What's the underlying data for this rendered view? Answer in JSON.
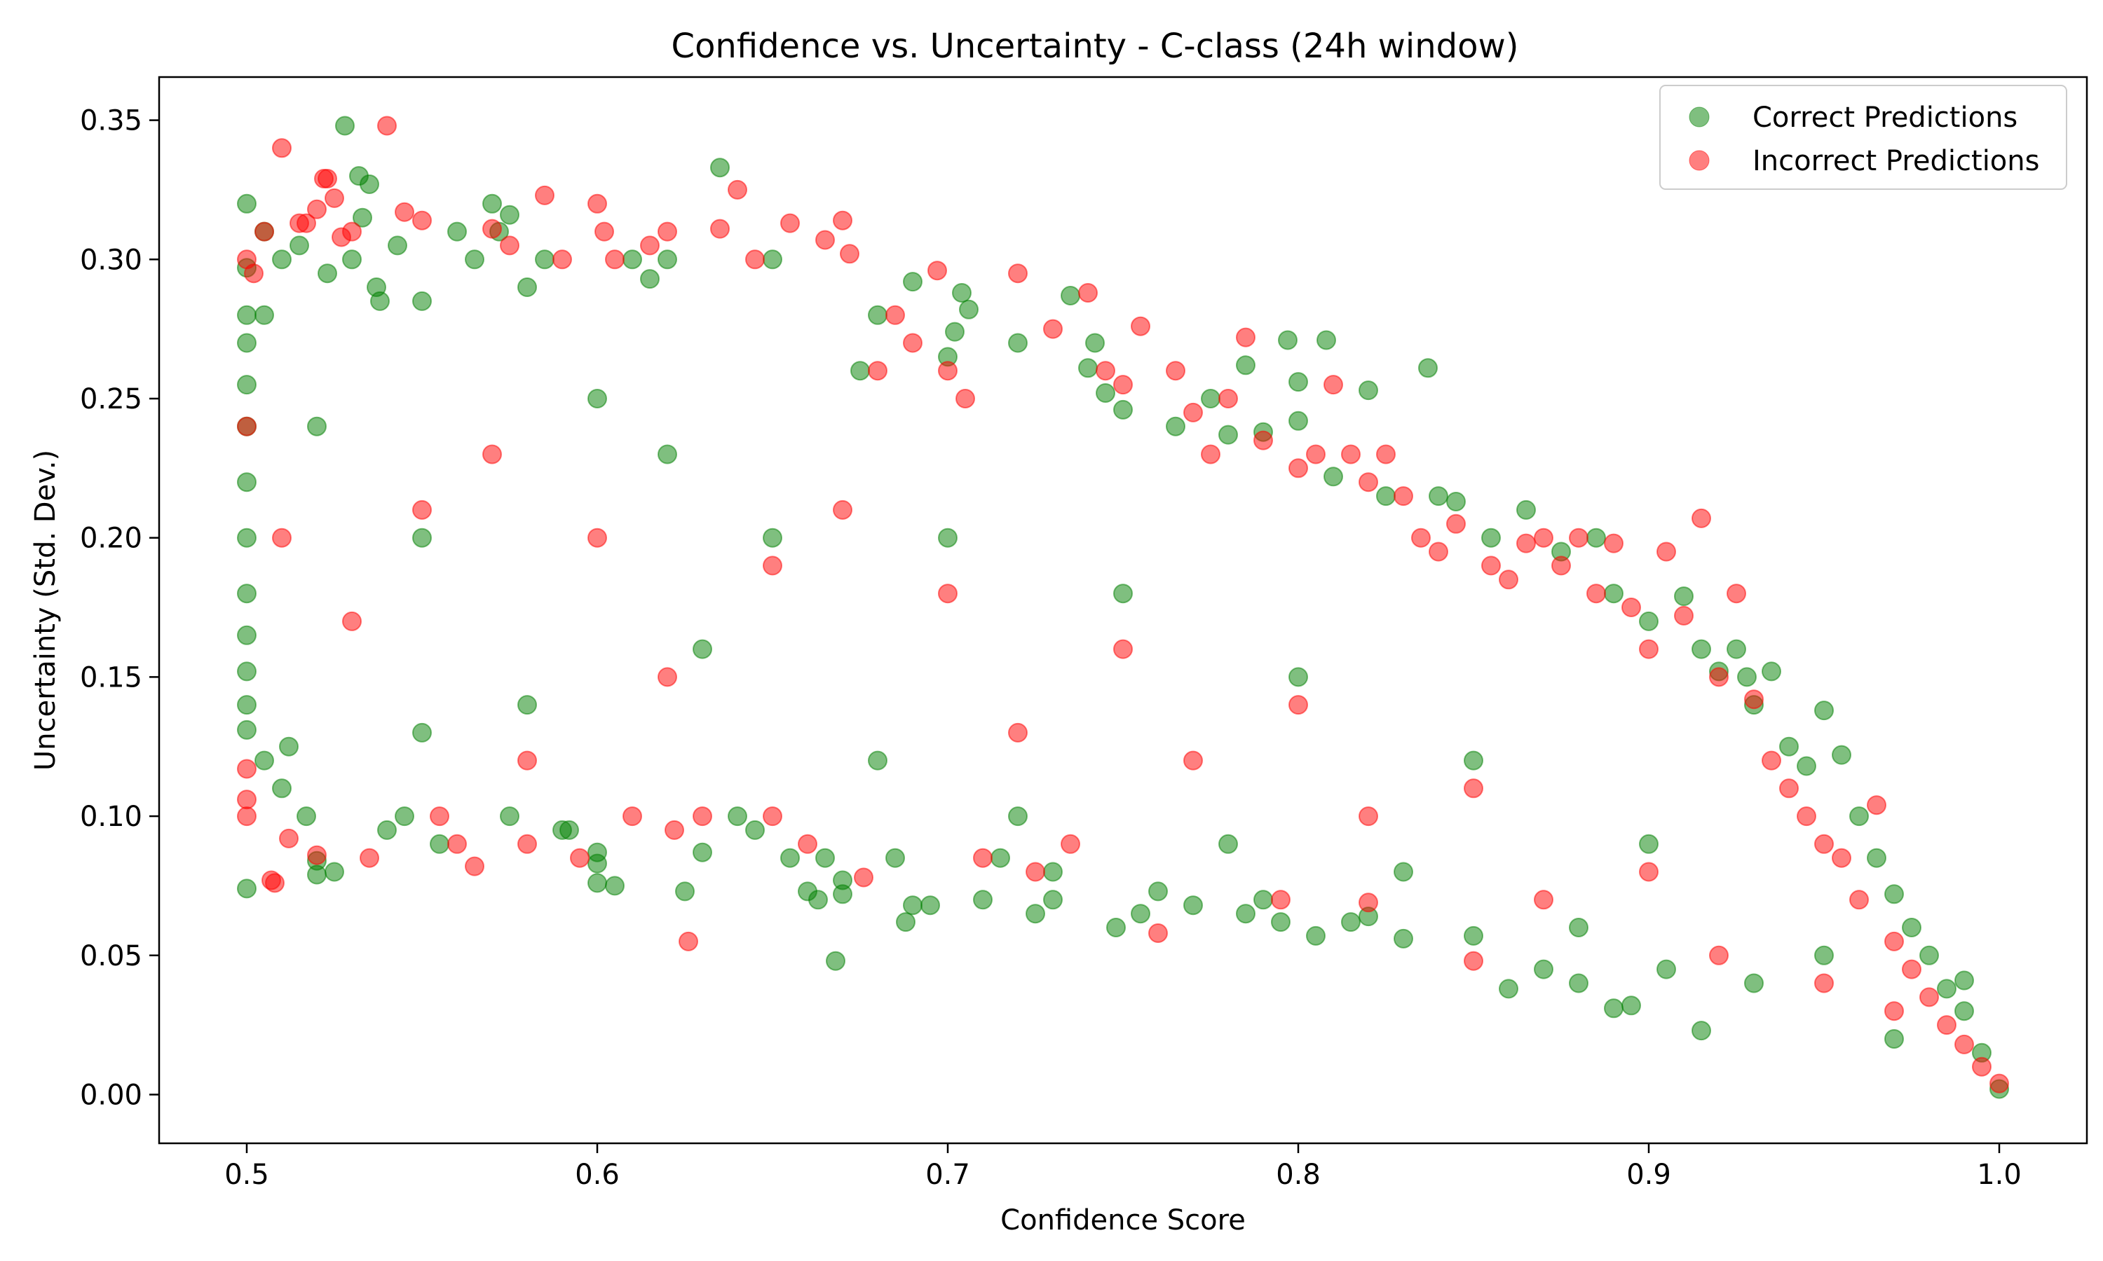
{
  "chart_data": {
    "type": "scatter",
    "title": "Confidence vs. Uncertainty - C-class (24h window)",
    "xlabel": "Confidence Score",
    "ylabel": "Uncertainty (Std. Dev.)",
    "xlim": [
      0.475,
      1.025
    ],
    "ylim": [
      -0.0175,
      0.3655
    ],
    "x_ticks": [
      0.5,
      0.6,
      0.7,
      0.8,
      0.9,
      1.0
    ],
    "x_tick_labels": [
      "0.5",
      "0.6",
      "0.7",
      "0.8",
      "0.9",
      "1.0"
    ],
    "y_ticks": [
      0.0,
      0.05,
      0.1,
      0.15,
      0.2,
      0.25,
      0.3,
      0.35
    ],
    "y_tick_labels": [
      "0.00",
      "0.05",
      "0.10",
      "0.15",
      "0.20",
      "0.25",
      "0.30",
      "0.35"
    ],
    "grid": false,
    "legend_position": "top-right",
    "series": [
      {
        "name": "Correct Predictions",
        "color": "#008000",
        "opacity": 0.5,
        "points": [
          [
            0.5,
            0.32
          ],
          [
            0.5,
            0.297
          ],
          [
            0.5,
            0.28
          ],
          [
            0.5,
            0.27
          ],
          [
            0.5,
            0.255
          ],
          [
            0.5,
            0.24
          ],
          [
            0.5,
            0.22
          ],
          [
            0.5,
            0.2
          ],
          [
            0.5,
            0.18
          ],
          [
            0.5,
            0.165
          ],
          [
            0.5,
            0.152
          ],
          [
            0.5,
            0.14
          ],
          [
            0.5,
            0.131
          ],
          [
            0.5,
            0.074
          ],
          [
            0.505,
            0.31
          ],
          [
            0.505,
            0.28
          ],
          [
            0.505,
            0.12
          ],
          [
            0.51,
            0.3
          ],
          [
            0.51,
            0.11
          ],
          [
            0.512,
            0.125
          ],
          [
            0.515,
            0.305
          ],
          [
            0.517,
            0.1
          ],
          [
            0.52,
            0.079
          ],
          [
            0.52,
            0.084
          ],
          [
            0.523,
            0.295
          ],
          [
            0.525,
            0.08
          ],
          [
            0.528,
            0.348
          ],
          [
            0.53,
            0.3
          ],
          [
            0.532,
            0.33
          ],
          [
            0.533,
            0.315
          ],
          [
            0.535,
            0.327
          ],
          [
            0.537,
            0.29
          ],
          [
            0.538,
            0.285
          ],
          [
            0.54,
            0.095
          ],
          [
            0.543,
            0.305
          ],
          [
            0.545,
            0.1
          ],
          [
            0.55,
            0.285
          ],
          [
            0.55,
            0.13
          ],
          [
            0.555,
            0.09
          ],
          [
            0.56,
            0.31
          ],
          [
            0.565,
            0.3
          ],
          [
            0.57,
            0.32
          ],
          [
            0.572,
            0.31
          ],
          [
            0.575,
            0.316
          ],
          [
            0.575,
            0.1
          ],
          [
            0.58,
            0.29
          ],
          [
            0.585,
            0.3
          ],
          [
            0.59,
            0.095
          ],
          [
            0.592,
            0.095
          ],
          [
            0.6,
            0.076
          ],
          [
            0.6,
            0.087
          ],
          [
            0.6,
            0.083
          ],
          [
            0.605,
            0.075
          ],
          [
            0.61,
            0.3
          ],
          [
            0.615,
            0.293
          ],
          [
            0.62,
            0.3
          ],
          [
            0.625,
            0.073
          ],
          [
            0.63,
            0.087
          ],
          [
            0.635,
            0.333
          ],
          [
            0.64,
            0.1
          ],
          [
            0.645,
            0.095
          ],
          [
            0.65,
            0.3
          ],
          [
            0.655,
            0.085
          ],
          [
            0.66,
            0.073
          ],
          [
            0.663,
            0.07
          ],
          [
            0.665,
            0.085
          ],
          [
            0.668,
            0.048
          ],
          [
            0.67,
            0.077
          ],
          [
            0.67,
            0.072
          ],
          [
            0.675,
            0.26
          ],
          [
            0.68,
            0.28
          ],
          [
            0.685,
            0.085
          ],
          [
            0.688,
            0.062
          ],
          [
            0.69,
            0.292
          ],
          [
            0.69,
            0.068
          ],
          [
            0.695,
            0.068
          ],
          [
            0.7,
            0.265
          ],
          [
            0.702,
            0.274
          ],
          [
            0.704,
            0.288
          ],
          [
            0.706,
            0.282
          ],
          [
            0.71,
            0.07
          ],
          [
            0.715,
            0.085
          ],
          [
            0.72,
            0.27
          ],
          [
            0.725,
            0.065
          ],
          [
            0.73,
            0.07
          ],
          [
            0.73,
            0.08
          ],
          [
            0.735,
            0.287
          ],
          [
            0.74,
            0.261
          ],
          [
            0.742,
            0.27
          ],
          [
            0.745,
            0.252
          ],
          [
            0.748,
            0.06
          ],
          [
            0.75,
            0.246
          ],
          [
            0.755,
            0.065
          ],
          [
            0.76,
            0.073
          ],
          [
            0.765,
            0.24
          ],
          [
            0.77,
            0.068
          ],
          [
            0.775,
            0.25
          ],
          [
            0.78,
            0.237
          ],
          [
            0.785,
            0.262
          ],
          [
            0.785,
            0.065
          ],
          [
            0.79,
            0.238
          ],
          [
            0.79,
            0.07
          ],
          [
            0.795,
            0.062
          ],
          [
            0.797,
            0.271
          ],
          [
            0.8,
            0.256
          ],
          [
            0.8,
            0.242
          ],
          [
            0.805,
            0.057
          ],
          [
            0.808,
            0.271
          ],
          [
            0.81,
            0.222
          ],
          [
            0.815,
            0.062
          ],
          [
            0.82,
            0.253
          ],
          [
            0.82,
            0.064
          ],
          [
            0.825,
            0.215
          ],
          [
            0.83,
            0.056
          ],
          [
            0.837,
            0.261
          ],
          [
            0.84,
            0.215
          ],
          [
            0.845,
            0.213
          ],
          [
            0.85,
            0.057
          ],
          [
            0.855,
            0.2
          ],
          [
            0.86,
            0.038
          ],
          [
            0.865,
            0.21
          ],
          [
            0.87,
            0.045
          ],
          [
            0.875,
            0.195
          ],
          [
            0.88,
            0.04
          ],
          [
            0.885,
            0.2
          ],
          [
            0.89,
            0.18
          ],
          [
            0.89,
            0.031
          ],
          [
            0.895,
            0.032
          ],
          [
            0.9,
            0.17
          ],
          [
            0.905,
            0.045
          ],
          [
            0.91,
            0.179
          ],
          [
            0.915,
            0.16
          ],
          [
            0.915,
            0.023
          ],
          [
            0.92,
            0.152
          ],
          [
            0.925,
            0.16
          ],
          [
            0.928,
            0.15
          ],
          [
            0.93,
            0.14
          ],
          [
            0.935,
            0.152
          ],
          [
            0.94,
            0.125
          ],
          [
            0.945,
            0.118
          ],
          [
            0.95,
            0.138
          ],
          [
            0.955,
            0.122
          ],
          [
            0.96,
            0.1
          ],
          [
            0.965,
            0.085
          ],
          [
            0.97,
            0.072
          ],
          [
            0.975,
            0.06
          ],
          [
            0.98,
            0.05
          ],
          [
            0.985,
            0.038
          ],
          [
            0.99,
            0.041
          ],
          [
            0.99,
            0.03
          ],
          [
            0.995,
            0.015
          ],
          [
            1.0,
            0.002
          ],
          [
            0.6,
            0.25
          ],
          [
            0.62,
            0.23
          ],
          [
            0.65,
            0.2
          ],
          [
            0.7,
            0.2
          ],
          [
            0.75,
            0.18
          ],
          [
            0.8,
            0.15
          ],
          [
            0.85,
            0.12
          ],
          [
            0.9,
            0.09
          ],
          [
            0.95,
            0.05
          ],
          [
            0.55,
            0.2
          ],
          [
            0.58,
            0.14
          ],
          [
            0.63,
            0.16
          ],
          [
            0.68,
            0.12
          ],
          [
            0.72,
            0.1
          ],
          [
            0.78,
            0.09
          ],
          [
            0.83,
            0.08
          ],
          [
            0.88,
            0.06
          ],
          [
            0.93,
            0.04
          ],
          [
            0.97,
            0.02
          ],
          [
            0.52,
            0.24
          ]
        ]
      },
      {
        "name": "Incorrect Predictions",
        "color": "#ff0000",
        "opacity": 0.5,
        "points": [
          [
            0.5,
            0.3
          ],
          [
            0.5,
            0.24
          ],
          [
            0.5,
            0.117
          ],
          [
            0.5,
            0.106
          ],
          [
            0.5,
            0.1
          ],
          [
            0.502,
            0.295
          ],
          [
            0.505,
            0.31
          ],
          [
            0.507,
            0.077
          ],
          [
            0.508,
            0.076
          ],
          [
            0.51,
            0.34
          ],
          [
            0.512,
            0.092
          ],
          [
            0.515,
            0.313
          ],
          [
            0.517,
            0.313
          ],
          [
            0.52,
            0.318
          ],
          [
            0.52,
            0.086
          ],
          [
            0.522,
            0.329
          ],
          [
            0.523,
            0.329
          ],
          [
            0.525,
            0.322
          ],
          [
            0.527,
            0.308
          ],
          [
            0.53,
            0.31
          ],
          [
            0.535,
            0.085
          ],
          [
            0.54,
            0.348
          ],
          [
            0.545,
            0.317
          ],
          [
            0.55,
            0.314
          ],
          [
            0.555,
            0.1
          ],
          [
            0.56,
            0.09
          ],
          [
            0.565,
            0.082
          ],
          [
            0.57,
            0.311
          ],
          [
            0.575,
            0.305
          ],
          [
            0.58,
            0.09
          ],
          [
            0.585,
            0.323
          ],
          [
            0.59,
            0.3
          ],
          [
            0.595,
            0.085
          ],
          [
            0.6,
            0.32
          ],
          [
            0.602,
            0.31
          ],
          [
            0.605,
            0.3
          ],
          [
            0.61,
            0.1
          ],
          [
            0.615,
            0.305
          ],
          [
            0.62,
            0.31
          ],
          [
            0.622,
            0.095
          ],
          [
            0.626,
            0.055
          ],
          [
            0.63,
            0.1
          ],
          [
            0.635,
            0.311
          ],
          [
            0.64,
            0.325
          ],
          [
            0.645,
            0.3
          ],
          [
            0.65,
            0.1
          ],
          [
            0.655,
            0.313
          ],
          [
            0.66,
            0.09
          ],
          [
            0.665,
            0.307
          ],
          [
            0.67,
            0.314
          ],
          [
            0.672,
            0.302
          ],
          [
            0.676,
            0.078
          ],
          [
            0.68,
            0.26
          ],
          [
            0.685,
            0.28
          ],
          [
            0.69,
            0.27
          ],
          [
            0.697,
            0.296
          ],
          [
            0.7,
            0.26
          ],
          [
            0.705,
            0.25
          ],
          [
            0.71,
            0.085
          ],
          [
            0.72,
            0.295
          ],
          [
            0.725,
            0.08
          ],
          [
            0.73,
            0.275
          ],
          [
            0.735,
            0.09
          ],
          [
            0.74,
            0.288
          ],
          [
            0.745,
            0.26
          ],
          [
            0.75,
            0.255
          ],
          [
            0.755,
            0.276
          ],
          [
            0.76,
            0.058
          ],
          [
            0.765,
            0.26
          ],
          [
            0.77,
            0.245
          ],
          [
            0.775,
            0.23
          ],
          [
            0.78,
            0.25
          ],
          [
            0.785,
            0.272
          ],
          [
            0.79,
            0.235
          ],
          [
            0.795,
            0.07
          ],
          [
            0.8,
            0.225
          ],
          [
            0.805,
            0.23
          ],
          [
            0.81,
            0.255
          ],
          [
            0.815,
            0.23
          ],
          [
            0.82,
            0.22
          ],
          [
            0.82,
            0.069
          ],
          [
            0.825,
            0.23
          ],
          [
            0.83,
            0.215
          ],
          [
            0.835,
            0.2
          ],
          [
            0.84,
            0.195
          ],
          [
            0.845,
            0.205
          ],
          [
            0.85,
            0.048
          ],
          [
            0.855,
            0.19
          ],
          [
            0.86,
            0.185
          ],
          [
            0.865,
            0.198
          ],
          [
            0.87,
            0.2
          ],
          [
            0.875,
            0.19
          ],
          [
            0.88,
            0.2
          ],
          [
            0.885,
            0.18
          ],
          [
            0.89,
            0.198
          ],
          [
            0.895,
            0.175
          ],
          [
            0.9,
            0.16
          ],
          [
            0.905,
            0.195
          ],
          [
            0.91,
            0.172
          ],
          [
            0.915,
            0.207
          ],
          [
            0.92,
            0.15
          ],
          [
            0.925,
            0.18
          ],
          [
            0.93,
            0.142
          ],
          [
            0.935,
            0.12
          ],
          [
            0.94,
            0.11
          ],
          [
            0.945,
            0.1
          ],
          [
            0.95,
            0.09
          ],
          [
            0.955,
            0.085
          ],
          [
            0.96,
            0.07
          ],
          [
            0.965,
            0.104
          ],
          [
            0.97,
            0.055
          ],
          [
            0.975,
            0.045
          ],
          [
            0.98,
            0.035
          ],
          [
            0.985,
            0.025
          ],
          [
            0.99,
            0.018
          ],
          [
            0.995,
            0.01
          ],
          [
            1.0,
            0.004
          ],
          [
            0.55,
            0.21
          ],
          [
            0.6,
            0.2
          ],
          [
            0.65,
            0.19
          ],
          [
            0.7,
            0.18
          ],
          [
            0.75,
            0.16
          ],
          [
            0.8,
            0.14
          ],
          [
            0.85,
            0.11
          ],
          [
            0.9,
            0.08
          ],
          [
            0.95,
            0.04
          ],
          [
            0.53,
            0.17
          ],
          [
            0.57,
            0.23
          ],
          [
            0.62,
            0.15
          ],
          [
            0.67,
            0.21
          ],
          [
            0.72,
            0.13
          ],
          [
            0.77,
            0.12
          ],
          [
            0.82,
            0.1
          ],
          [
            0.87,
            0.07
          ],
          [
            0.92,
            0.05
          ],
          [
            0.97,
            0.03
          ],
          [
            0.51,
            0.2
          ],
          [
            0.58,
            0.12
          ]
        ]
      }
    ]
  }
}
